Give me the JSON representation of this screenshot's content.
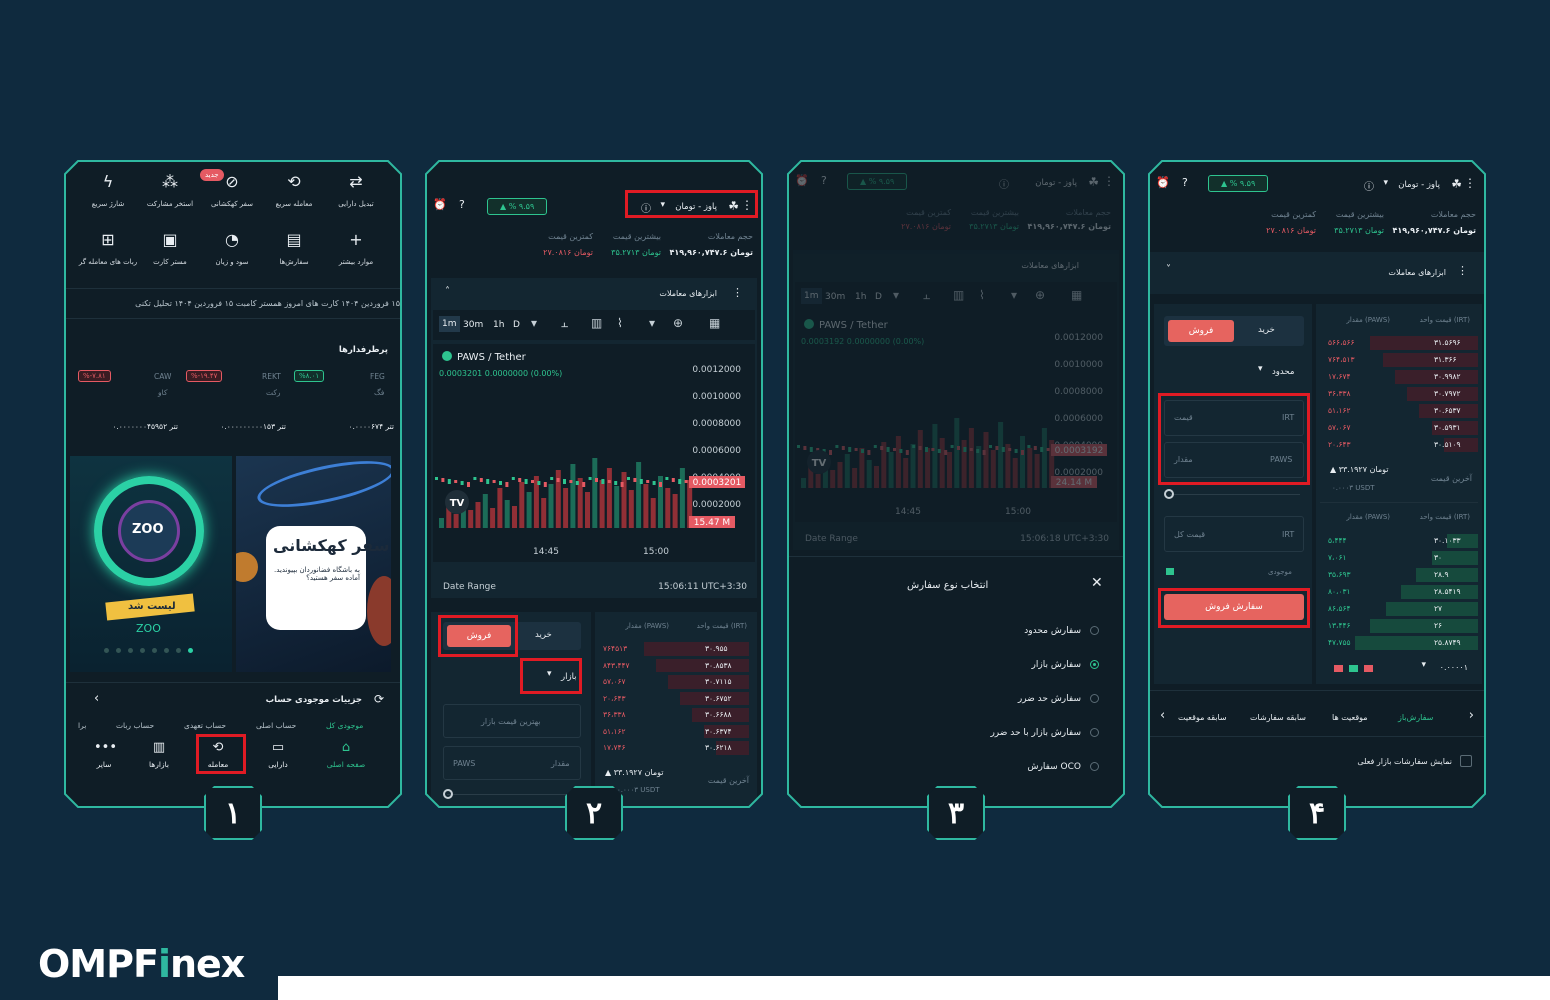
{
  "brand": {
    "name_a": "OMPF",
    "name_i": "i",
    "name_b": "nex"
  },
  "steps": [
    "۱",
    "۲",
    "۳",
    "۴"
  ],
  "phone1": {
    "quick_actions": [
      {
        "label": "تبدیل دارایی",
        "icon": "⇄"
      },
      {
        "label": "معامله سریع",
        "icon": "⟲"
      },
      {
        "label": "سفر کهکشانی",
        "icon": "⊘"
      },
      {
        "label": "استخر مشارکت",
        "icon": "⁂"
      },
      {
        "label": "شارژ سریع",
        "icon": "ϟ"
      },
      {
        "label": "موارد بیشتر",
        "icon": "+"
      },
      {
        "label": "سفارش‌ها",
        "icon": "▤"
      },
      {
        "label": "سود و زیان",
        "icon": "◔"
      },
      {
        "label": "مستر کارت",
        "icon": "▣"
      },
      {
        "label": "ربات های معامله گر",
        "icon": "⊞"
      }
    ],
    "new_badge": "جدید",
    "ticker": "۱۵ فروردین ۱۴۰۴    کارت های امروز همستر کامبت ۱۵ فروردین ۱۴۰۴    تحلیل تکنی",
    "gainers_title": "پرطرفدارها",
    "gainers": [
      {
        "symbol": "FEG",
        "name": "فگ",
        "change": "%۸.۰۱",
        "price": "۰.۰۰۰۰۶۷۴ تتر"
      },
      {
        "symbol": "REKT",
        "name": "رکت",
        "change": "%-۱۹.۴۷",
        "price": "۰.۰۰۰۰۰۰۰۰۰۱۵۳ تتر"
      },
      {
        "symbol": "CAW",
        "name": "کاو",
        "change": "%-۷.۸۱",
        "price": "۰.۰۰۰۰۰۰۰۴۵۹۵۲ تتر"
      }
    ],
    "banner_left_title": "سفر کهکشانی",
    "banner_left_sub": "به باشگاه فضانوردان بپیوندید. آماده سفر هستید؟",
    "banner_right_title": "لیست شد",
    "banner_right_sub": "ZOO",
    "banner_right_logo": "ZOO",
    "account_title": "جزییات موجودی حساب",
    "account_tabs": [
      "موجودی کل",
      "حساب اصلی",
      "حساب تعهدی",
      "حساب ربات",
      "برا"
    ],
    "nav": [
      {
        "label": "صفحه اصلی",
        "icon": "⌂"
      },
      {
        "label": "دارایی",
        "icon": "▭"
      },
      {
        "label": "معامله",
        "icon": "⟲"
      },
      {
        "label": "بازارها",
        "icon": "▥"
      },
      {
        "label": "سایر",
        "icon": "•••"
      }
    ]
  },
  "market": {
    "pair": "پاوز - تومان",
    "change": "▲ % ۹.۵۹",
    "volume_label": "حجم معاملات",
    "volume_value": "۴۱۹,۹۶۰,۷۴۷.۶ تومان",
    "high_label": "بیشترین قیمت",
    "high_value": "۳۵.۲۷۱۳ تومان",
    "low_label": "کمترین قیمت",
    "low_value": "۲۷.۰۸۱۶ تومان",
    "tools_label": "ابزارهای معاملات",
    "timeframes": [
      "1m",
      "30m",
      "1h",
      "D"
    ],
    "chart_pair": "PAWS / Tether",
    "chart_price_line": "0.0003201  0.0000000 (0.00%)",
    "y_ticks": [
      "0.0012000",
      "0.0010000",
      "0.0008000",
      "0.0006000",
      "0.0004000",
      "0.0002000",
      "0"
    ],
    "last_tag": "0.0003201",
    "vol_tag": "15.47 M",
    "p3_last_tag": "0.0003192",
    "p3_vol_tag": "24.14 M",
    "p3_price_line": "0.0003192  0.0000000 (0.00%)",
    "x_ticks": [
      "14:45",
      "15:00"
    ],
    "date_range": "Date Range",
    "time_p2": "15:06:11 UTC+3:30",
    "time_p3": "15:06:18 UTC+3:30",
    "tv_logo": "TV",
    "buy": "خرید",
    "sell": "فروش",
    "market_order": "بازار",
    "limit_order": "محدود",
    "best_price": "بهترین قیمت بازار",
    "amount": "مقدار",
    "price": "قیمت",
    "total": "قیمت کل",
    "paws": "PAWS",
    "irt": "IRT",
    "balance": "موجودی",
    "sell_order_btn": "سفارش فروش",
    "ob_head_price": "قیمت واحد (IRT)",
    "ob_head_amount": "مقدار (PAWS)",
    "asks_p2": [
      [
        "۳۰.۹۵۵",
        "۷۶۴۵۱۳"
      ],
      [
        "۳۰.۸۵۳۸",
        "۸۴۳،۴۴۷"
      ],
      [
        "۳۰.۷۱۱۵",
        "۵۷،۰۶۷"
      ],
      [
        "۳۰.۶۷۵۲",
        "۲۰،۶۴۳"
      ],
      [
        "۳۰.۶۶۸۸",
        "۳۶،۳۳۸"
      ],
      [
        "۳۰.۶۳۷۴",
        "۵۱،۱۶۲"
      ],
      [
        "۳۰.۶۲۱۸",
        "۱۷،۷۴۶"
      ]
    ],
    "last_price_label": "آخرین قیمت",
    "last_price_value": "▲ ۳۳.۱۹۲۷ تومان",
    "last_price_usdt": "۰.۰۰۰۳ USDT",
    "asks_p4": [
      [
        "۳۱.۵۶۹۶",
        "۵۶۶،۵۶۶"
      ],
      [
        "۳۱.۳۶۶",
        "۷۶۴،۵۱۳"
      ],
      [
        "۳۰.۹۹۸۲",
        "۱۷،۶۷۴"
      ],
      [
        "۳۰.۷۹۷۲",
        "۳۶،۳۳۸"
      ],
      [
        "۳۰.۶۵۳۷",
        "۵۱،۱۶۲"
      ],
      [
        "۳۰.۵۹۳۱",
        "۵۷،۰۶۷"
      ],
      [
        "۳۰.۵۱۰۹",
        "۲۰،۶۴۳"
      ]
    ],
    "bids_p4": [
      [
        "۳۰.۱۰۳۳",
        "۵،۴۴۴"
      ],
      [
        "۳۰",
        "۷،۰۶۱"
      ],
      [
        "۲۸.۹",
        "۳۵،۶۹۳"
      ],
      [
        "۲۸.۵۴۱۹",
        "۸۰،۰۳۱"
      ],
      [
        "۲۷",
        "۸۶،۵۶۴"
      ],
      [
        "۲۶",
        "۱۳،۴۴۶"
      ],
      [
        "۲۵.۸۷۴۹",
        "۴۷،۷۵۵"
      ]
    ],
    "precision": "۰.۰۰۰۰۱",
    "tabs_p4": [
      "سفارش‌باز",
      "موقعیت ها",
      "سابقه سفارشات",
      "سابقه موقعیت"
    ],
    "show_current": "نمایش سفارشات بازار فعلی"
  },
  "order_types": {
    "title": "انتخاب نوع سفارش",
    "options": [
      "سفارش محدود",
      "سفارش بازار",
      "سفارش حد ضرر",
      "سفارش بازار با حد ضرر",
      "سفارش OCO"
    ],
    "selected_index": 1
  },
  "colors": {
    "accent": "#2fb8a0",
    "sell": "#e6645f",
    "highlight": "#e01b24",
    "bg": "#0f2a3e"
  }
}
